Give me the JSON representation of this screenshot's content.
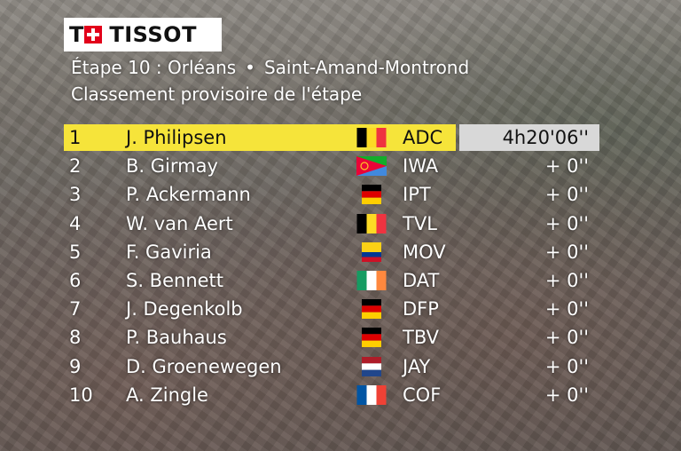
{
  "brand": {
    "logo_text": "TISSOT"
  },
  "header": {
    "stage": "Étape 10 : Orléans",
    "separator": "•",
    "destination": "Saint-Amand-Montrond",
    "subtitle": "Classement provisoire de l'étape"
  },
  "rows": [
    {
      "rank": "1",
      "name": "J. Philipsen",
      "flag": "belgium-flag-icon",
      "team": "ADC",
      "time": "4h20'06''"
    },
    {
      "rank": "2",
      "name": "B. Girmay",
      "flag": "eritrea-flag-icon",
      "team": "IWA",
      "time": "+  0''"
    },
    {
      "rank": "3",
      "name": "P. Ackermann",
      "flag": "germany-flag-icon",
      "team": "IPT",
      "time": "+  0''"
    },
    {
      "rank": "4",
      "name": "W. van Aert",
      "flag": "belgium-flag-icon",
      "team": "TVL",
      "time": "+  0''"
    },
    {
      "rank": "5",
      "name": "F. Gaviria",
      "flag": "colombia-flag-icon",
      "team": "MOV",
      "time": "+  0''"
    },
    {
      "rank": "6",
      "name": "S. Bennett",
      "flag": "ireland-flag-icon",
      "team": "DAT",
      "time": "+  0''"
    },
    {
      "rank": "7",
      "name": "J. Degenkolb",
      "flag": "germany-flag-icon",
      "team": "DFP",
      "time": "+  0''"
    },
    {
      "rank": "8",
      "name": "P. Bauhaus",
      "flag": "germany-flag-icon",
      "team": "TBV",
      "time": "+  0''"
    },
    {
      "rank": "9",
      "name": "D. Groenewegen",
      "flag": "netherlands-flag-icon",
      "team": "JAY",
      "time": "+  0''"
    },
    {
      "rank": "10",
      "name": "A. Zingle",
      "flag": "france-flag-icon",
      "team": "COF",
      "time": "+  0''"
    }
  ],
  "colors": {
    "leader_bar": "#f6e43a",
    "leader_time_box": "#d8d8d8",
    "text": "#ffffff",
    "logo_red": "#e2001a"
  }
}
